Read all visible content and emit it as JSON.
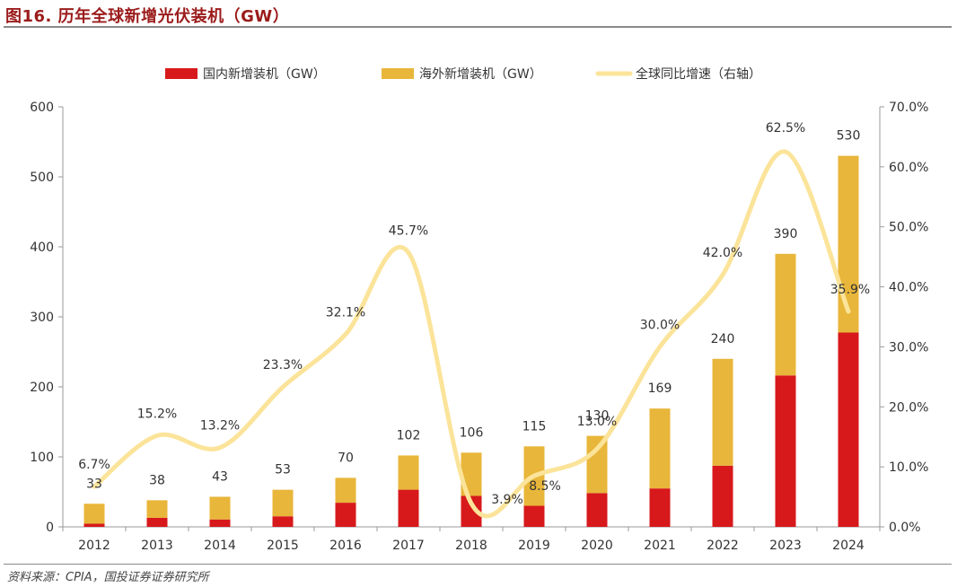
{
  "title": "图16. 历年全球新增光伏装机（GW）",
  "source": "资料来源：CPIA，国投证券证券研究所",
  "colors": {
    "domestic": "#d7191c",
    "overseas": "#e8b63a",
    "growth_line": "#fbe49a",
    "axis": "#9a9a9a"
  },
  "chart_data": {
    "type": "bar",
    "stacked": true,
    "title": "历年全球新增光伏装机（GW）",
    "categories": [
      "2012",
      "2013",
      "2014",
      "2015",
      "2016",
      "2017",
      "2018",
      "2019",
      "2020",
      "2021",
      "2022",
      "2023",
      "2024"
    ],
    "series": [
      {
        "name": "国内新增装机（GW）",
        "type": "bar",
        "axis": "left",
        "values": [
          4.5,
          12.9,
          10.6,
          15.1,
          34.5,
          53.1,
          44.3,
          30.1,
          48.2,
          54.9,
          87.4,
          216.3,
          277.6
        ]
      },
      {
        "name": "海外新增装机（GW）",
        "type": "bar",
        "axis": "left",
        "values": [
          28.5,
          25.1,
          32.4,
          37.9,
          35.5,
          48.9,
          61.7,
          84.9,
          81.8,
          114.1,
          152.6,
          173.7,
          252.4
        ]
      },
      {
        "name": "全球同比增速（右轴）",
        "type": "line",
        "axis": "right",
        "values": [
          6.7,
          15.2,
          13.2,
          23.3,
          32.1,
          45.7,
          3.9,
          8.5,
          13.0,
          30.0,
          42.0,
          62.5,
          35.9
        ]
      }
    ],
    "total_labels": [
      "33",
      "38",
      "43",
      "53",
      "70",
      "102",
      "106",
      "115",
      "130",
      "169",
      "240",
      "390",
      "530"
    ],
    "growth_labels": [
      "6.7%",
      "15.2%",
      "13.2%",
      "23.3%",
      "32.1%",
      "45.7%",
      "3.9%",
      "8.5%",
      "13.0%",
      "30.0%",
      "42.0%",
      "62.5%",
      "35.9%"
    ],
    "y_left": {
      "min": 0,
      "max": 600,
      "ticks": [
        "0",
        "100",
        "200",
        "300",
        "400",
        "500",
        "600"
      ]
    },
    "y_right": {
      "min": 0,
      "max": 70,
      "ticks": [
        "0.0%",
        "10.0%",
        "20.0%",
        "30.0%",
        "40.0%",
        "50.0%",
        "60.0%",
        "70.0%"
      ]
    },
    "grid": false,
    "legend_position": "top-center"
  }
}
